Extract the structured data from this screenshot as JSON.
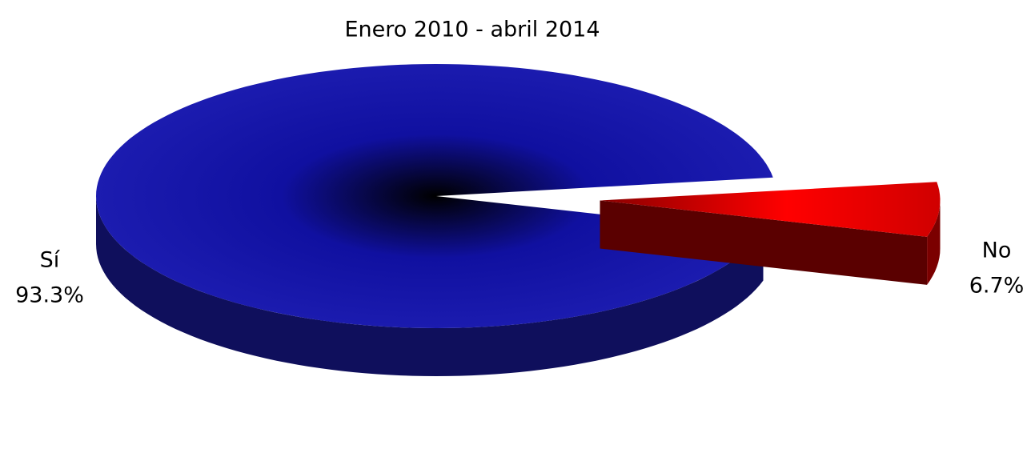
{
  "chart_data": {
    "type": "pie3d",
    "title": "Enero 2010 - abril 2014",
    "categories": [
      "Sí",
      "No"
    ],
    "values": [
      93.3,
      6.7
    ],
    "value_labels": [
      "93.3%",
      "6.7%"
    ],
    "colors": [
      "#1c1ca8",
      "#e00000"
    ]
  }
}
